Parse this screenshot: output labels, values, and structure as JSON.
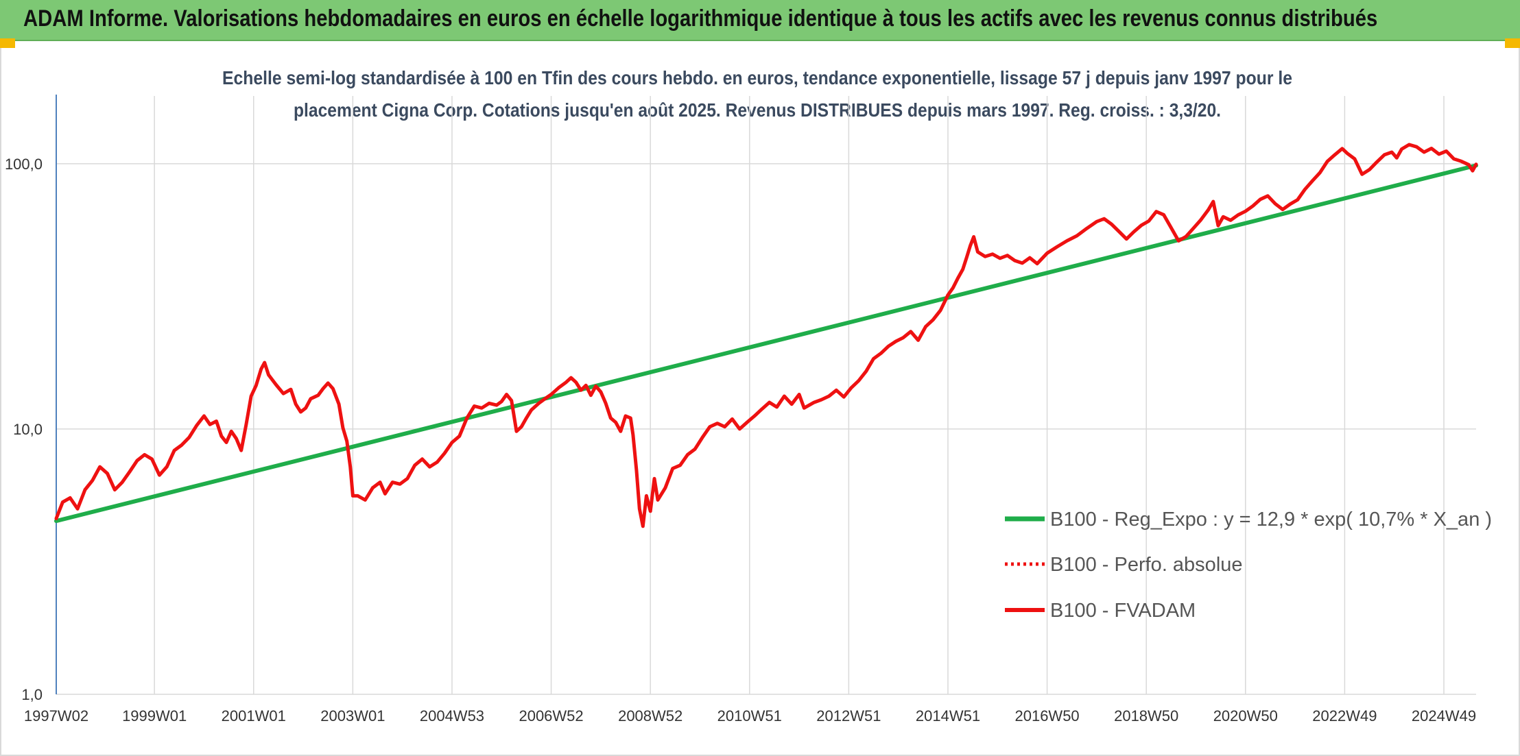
{
  "header": {
    "title": "ADAM Informe. Valorisations hebdomadaires en euros en échelle logarithmique identique à tous les actifs avec les revenus connus distribués"
  },
  "colors": {
    "banner": "#7dc874",
    "regression": "#1fad4a",
    "fvadam": "#ee1111",
    "perfo": "#ee1111",
    "axis": "#4f81bd",
    "grid": "#d9d9d9"
  },
  "chart_data": {
    "type": "line",
    "subtitle_lines": [
      "Echelle semi-log standardisée à 100 en Tfin des cours hebdo. en euros, tendance exponentielle, lissage 57 j depuis janv 1997 pour le",
      "placement Cigna Corp. Cotations jusqu'en août 2025. Revenus DISTRIBUES depuis mars 1997. Reg. croiss. : 3,3/20."
    ],
    "y_scale": "log",
    "ylim": [
      1,
      180
    ],
    "y_ticks": [
      {
        "value": 1,
        "label": "1,0"
      },
      {
        "value": 10,
        "label": "10,0"
      },
      {
        "value": 100,
        "label": "100,0"
      }
    ],
    "x_range": [
      1997.02,
      2025.65
    ],
    "x_ticks": [
      {
        "value": 1997.02,
        "label": "1997W02"
      },
      {
        "value": 1999.0,
        "label": "1999W01"
      },
      {
        "value": 2001.0,
        "label": "2001W01"
      },
      {
        "value": 2003.0,
        "label": "2003W01"
      },
      {
        "value": 2005.0,
        "label": "2004W53"
      },
      {
        "value": 2007.0,
        "label": "2006W52"
      },
      {
        "value": 2009.0,
        "label": "2008W52"
      },
      {
        "value": 2011.0,
        "label": "2010W51"
      },
      {
        "value": 2013.0,
        "label": "2012W51"
      },
      {
        "value": 2015.0,
        "label": "2014W51"
      },
      {
        "value": 2017.0,
        "label": "2016W50"
      },
      {
        "value": 2019.0,
        "label": "2018W50"
      },
      {
        "value": 2021.0,
        "label": "2020W50"
      },
      {
        "value": 2023.0,
        "label": "2022W49"
      },
      {
        "value": 2025.0,
        "label": "2024W49"
      }
    ],
    "grid": "vertical and horizontal",
    "legend_position": "lower-right",
    "series": [
      {
        "name": "B100 - Reg_Expo : y = 12,9 * exp( 10,7% *  X_an )",
        "style": "solid",
        "points": [
          [
            1997.02,
            4.5
          ],
          [
            2025.65,
            98.5
          ]
        ]
      },
      {
        "name": "B100 - Perfo. absolue",
        "style": "dotted",
        "points": []
      },
      {
        "name": "B100 - FVADAM",
        "style": "solid",
        "points": [
          [
            1997.02,
            4.6
          ],
          [
            1997.15,
            5.3
          ],
          [
            1997.3,
            5.5
          ],
          [
            1997.45,
            5.0
          ],
          [
            1997.6,
            5.9
          ],
          [
            1997.75,
            6.4
          ],
          [
            1997.9,
            7.2
          ],
          [
            1998.05,
            6.8
          ],
          [
            1998.2,
            5.9
          ],
          [
            1998.35,
            6.3
          ],
          [
            1998.5,
            6.9
          ],
          [
            1998.65,
            7.6
          ],
          [
            1998.8,
            8.0
          ],
          [
            1998.95,
            7.7
          ],
          [
            1999.1,
            6.7
          ],
          [
            1999.25,
            7.2
          ],
          [
            1999.4,
            8.3
          ],
          [
            1999.55,
            8.7
          ],
          [
            1999.7,
            9.3
          ],
          [
            1999.85,
            10.3
          ],
          [
            2000.0,
            11.2
          ],
          [
            2000.12,
            10.4
          ],
          [
            2000.25,
            10.7
          ],
          [
            2000.35,
            9.4
          ],
          [
            2000.45,
            8.9
          ],
          [
            2000.55,
            9.8
          ],
          [
            2000.65,
            9.2
          ],
          [
            2000.75,
            8.3
          ],
          [
            2000.85,
            10.4
          ],
          [
            2000.95,
            13.3
          ],
          [
            2001.05,
            14.6
          ],
          [
            2001.15,
            16.8
          ],
          [
            2001.22,
            17.8
          ],
          [
            2001.3,
            16.0
          ],
          [
            2001.45,
            14.7
          ],
          [
            2001.6,
            13.6
          ],
          [
            2001.75,
            14.1
          ],
          [
            2001.85,
            12.4
          ],
          [
            2001.95,
            11.6
          ],
          [
            2002.05,
            12.0
          ],
          [
            2002.15,
            13.0
          ],
          [
            2002.3,
            13.4
          ],
          [
            2002.4,
            14.2
          ],
          [
            2002.5,
            14.9
          ],
          [
            2002.6,
            14.2
          ],
          [
            2002.72,
            12.4
          ],
          [
            2002.8,
            10.1
          ],
          [
            2002.88,
            9.0
          ],
          [
            2002.95,
            7.2
          ],
          [
            2003.0,
            5.6
          ],
          [
            2003.1,
            5.6
          ],
          [
            2003.25,
            5.4
          ],
          [
            2003.4,
            6.0
          ],
          [
            2003.55,
            6.3
          ],
          [
            2003.65,
            5.7
          ],
          [
            2003.8,
            6.3
          ],
          [
            2003.95,
            6.2
          ],
          [
            2004.1,
            6.5
          ],
          [
            2004.25,
            7.3
          ],
          [
            2004.4,
            7.7
          ],
          [
            2004.55,
            7.2
          ],
          [
            2004.7,
            7.5
          ],
          [
            2004.85,
            8.1
          ],
          [
            2005.0,
            8.9
          ],
          [
            2005.15,
            9.4
          ],
          [
            2005.3,
            11.0
          ],
          [
            2005.45,
            12.2
          ],
          [
            2005.6,
            12.0
          ],
          [
            2005.75,
            12.5
          ],
          [
            2005.9,
            12.3
          ],
          [
            2006.0,
            12.7
          ],
          [
            2006.1,
            13.5
          ],
          [
            2006.2,
            12.8
          ],
          [
            2006.3,
            9.8
          ],
          [
            2006.4,
            10.2
          ],
          [
            2006.5,
            11.0
          ],
          [
            2006.6,
            11.8
          ],
          [
            2006.75,
            12.5
          ],
          [
            2006.9,
            13.1
          ],
          [
            2007.0,
            13.5
          ],
          [
            2007.15,
            14.3
          ],
          [
            2007.3,
            15.0
          ],
          [
            2007.4,
            15.6
          ],
          [
            2007.5,
            15.0
          ],
          [
            2007.6,
            14.0
          ],
          [
            2007.7,
            14.6
          ],
          [
            2007.8,
            13.4
          ],
          [
            2007.9,
            14.5
          ],
          [
            2008.0,
            13.8
          ],
          [
            2008.1,
            12.5
          ],
          [
            2008.2,
            11.0
          ],
          [
            2008.3,
            10.6
          ],
          [
            2008.4,
            9.8
          ],
          [
            2008.5,
            11.2
          ],
          [
            2008.6,
            11.0
          ],
          [
            2008.65,
            9.5
          ],
          [
            2008.72,
            7.0
          ],
          [
            2008.78,
            5.0
          ],
          [
            2008.85,
            4.3
          ],
          [
            2008.92,
            5.6
          ],
          [
            2009.0,
            4.9
          ],
          [
            2009.08,
            6.5
          ],
          [
            2009.15,
            5.4
          ],
          [
            2009.3,
            6.0
          ],
          [
            2009.45,
            7.1
          ],
          [
            2009.6,
            7.3
          ],
          [
            2009.75,
            8.0
          ],
          [
            2009.9,
            8.4
          ],
          [
            2010.05,
            9.3
          ],
          [
            2010.2,
            10.2
          ],
          [
            2010.35,
            10.5
          ],
          [
            2010.5,
            10.2
          ],
          [
            2010.65,
            10.9
          ],
          [
            2010.8,
            10.0
          ],
          [
            2010.95,
            10.6
          ],
          [
            2011.1,
            11.2
          ],
          [
            2011.25,
            11.9
          ],
          [
            2011.4,
            12.6
          ],
          [
            2011.55,
            12.1
          ],
          [
            2011.7,
            13.3
          ],
          [
            2011.85,
            12.4
          ],
          [
            2012.0,
            13.5
          ],
          [
            2012.1,
            12.0
          ],
          [
            2012.3,
            12.6
          ],
          [
            2012.45,
            12.9
          ],
          [
            2012.6,
            13.3
          ],
          [
            2012.75,
            14.0
          ],
          [
            2012.9,
            13.2
          ],
          [
            2013.05,
            14.3
          ],
          [
            2013.2,
            15.2
          ],
          [
            2013.35,
            16.5
          ],
          [
            2013.5,
            18.4
          ],
          [
            2013.65,
            19.3
          ],
          [
            2013.8,
            20.5
          ],
          [
            2013.95,
            21.4
          ],
          [
            2014.1,
            22.1
          ],
          [
            2014.25,
            23.3
          ],
          [
            2014.4,
            21.6
          ],
          [
            2014.55,
            24.3
          ],
          [
            2014.7,
            25.8
          ],
          [
            2014.85,
            28.0
          ],
          [
            2015.0,
            32.0
          ],
          [
            2015.1,
            34.0
          ],
          [
            2015.2,
            37.0
          ],
          [
            2015.3,
            40.0
          ],
          [
            2015.38,
            44.5
          ],
          [
            2015.45,
            49.0
          ],
          [
            2015.52,
            53.0
          ],
          [
            2015.6,
            46.5
          ],
          [
            2015.75,
            44.7
          ],
          [
            2015.9,
            45.6
          ],
          [
            2016.05,
            44.0
          ],
          [
            2016.2,
            45.1
          ],
          [
            2016.35,
            43.1
          ],
          [
            2016.5,
            42.2
          ],
          [
            2016.65,
            44.2
          ],
          [
            2016.8,
            42.0
          ],
          [
            2017.0,
            46.0
          ],
          [
            2017.2,
            48.6
          ],
          [
            2017.4,
            51.2
          ],
          [
            2017.6,
            53.5
          ],
          [
            2017.8,
            57.0
          ],
          [
            2018.0,
            60.5
          ],
          [
            2018.15,
            62.0
          ],
          [
            2018.3,
            59.1
          ],
          [
            2018.45,
            55.5
          ],
          [
            2018.6,
            52.0
          ],
          [
            2018.75,
            55.4
          ],
          [
            2018.9,
            58.6
          ],
          [
            2019.05,
            60.8
          ],
          [
            2019.2,
            66.0
          ],
          [
            2019.35,
            64.2
          ],
          [
            2019.5,
            57.4
          ],
          [
            2019.65,
            51.2
          ],
          [
            2019.8,
            53.1
          ],
          [
            2019.95,
            57.1
          ],
          [
            2020.1,
            61.4
          ],
          [
            2020.25,
            67.0
          ],
          [
            2020.35,
            72.0
          ],
          [
            2020.45,
            58.4
          ],
          [
            2020.55,
            63.1
          ],
          [
            2020.7,
            61.2
          ],
          [
            2020.85,
            64.1
          ],
          [
            2021.0,
            66.2
          ],
          [
            2021.15,
            69.3
          ],
          [
            2021.3,
            73.4
          ],
          [
            2021.45,
            75.6
          ],
          [
            2021.6,
            70.6
          ],
          [
            2021.75,
            67.2
          ],
          [
            2021.9,
            70.4
          ],
          [
            2022.05,
            73.1
          ],
          [
            2022.2,
            80.1
          ],
          [
            2022.35,
            86.2
          ],
          [
            2022.5,
            92.4
          ],
          [
            2022.65,
            102.0
          ],
          [
            2022.8,
            108.0
          ],
          [
            2022.95,
            114.0
          ],
          [
            2023.05,
            109.5
          ],
          [
            2023.2,
            104.3
          ],
          [
            2023.35,
            91.2
          ],
          [
            2023.5,
            95.0
          ],
          [
            2023.65,
            101.5
          ],
          [
            2023.8,
            108.0
          ],
          [
            2023.95,
            110.5
          ],
          [
            2024.05,
            105.2
          ],
          [
            2024.15,
            113.5
          ],
          [
            2024.3,
            118.0
          ],
          [
            2024.45,
            115.8
          ],
          [
            2024.6,
            110.5
          ],
          [
            2024.75,
            114.2
          ],
          [
            2024.9,
            108.6
          ],
          [
            2025.05,
            111.5
          ],
          [
            2025.2,
            104.3
          ],
          [
            2025.35,
            102.1
          ],
          [
            2025.5,
            99.1
          ],
          [
            2025.58,
            94.0
          ],
          [
            2025.65,
            99.5
          ]
        ]
      }
    ]
  }
}
